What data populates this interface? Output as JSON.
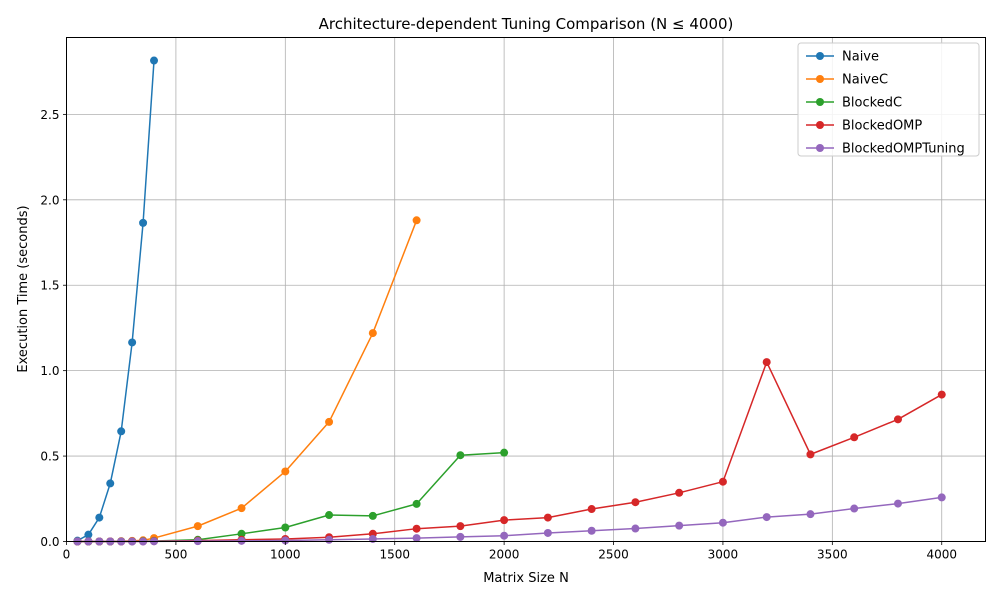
{
  "chart_data": {
    "type": "line",
    "title": "Architecture-dependent Tuning Comparison (N ≤ 4000)",
    "xlabel": "Matrix Size N",
    "ylabel": "Execution Time (seconds)",
    "xlim": [
      0,
      4200
    ],
    "ylim": [
      0,
      2.95
    ],
    "xticks": [
      0,
      500,
      1000,
      1500,
      2000,
      2500,
      3000,
      3500,
      4000
    ],
    "yticks": [
      0.0,
      0.5,
      1.0,
      1.5,
      2.0,
      2.5
    ],
    "xtick_labels": [
      "0",
      "500",
      "1000",
      "1500",
      "2000",
      "2500",
      "3000",
      "3500",
      "4000"
    ],
    "ytick_labels": [
      "0.0",
      "0.5",
      "1.0",
      "1.5",
      "2.0",
      "2.5"
    ],
    "grid": true,
    "legend_position": "top-right",
    "series": [
      {
        "name": "Naive",
        "color": "#1f77b4",
        "x": [
          50,
          100,
          150,
          200,
          250,
          300,
          350,
          400
        ],
        "y": [
          0.005,
          0.04,
          0.14,
          0.34,
          0.645,
          1.165,
          1.865,
          2.815
        ]
      },
      {
        "name": "NaiveC",
        "color": "#ff7f0e",
        "x": [
          50,
          100,
          150,
          200,
          250,
          300,
          350,
          400,
          600,
          800,
          1000,
          1200,
          1400,
          1600
        ],
        "y": [
          0.0,
          0.0,
          0.0,
          0.001,
          0.002,
          0.004,
          0.007,
          0.02,
          0.09,
          0.195,
          0.41,
          0.7,
          1.22,
          1.88
        ]
      },
      {
        "name": "BlockedC",
        "color": "#2ca02c",
        "x": [
          50,
          100,
          150,
          200,
          250,
          300,
          350,
          400,
          600,
          800,
          1000,
          1200,
          1400,
          1600,
          1800,
          2000
        ],
        "y": [
          0.0,
          0.0,
          0.0,
          0.0,
          0.001,
          0.001,
          0.002,
          0.003,
          0.01,
          0.045,
          0.082,
          0.155,
          0.15,
          0.22,
          0.505,
          0.52
        ]
      },
      {
        "name": "BlockedOMP",
        "color": "#d62728",
        "x": [
          50,
          100,
          150,
          200,
          250,
          300,
          350,
          400,
          600,
          800,
          1000,
          1200,
          1400,
          1600,
          1800,
          2000,
          2200,
          2400,
          2600,
          2800,
          3000,
          3200,
          3400,
          3600,
          3800,
          4000
        ],
        "y": [
          0.0,
          0.0,
          0.0,
          0.0,
          0.0,
          0.001,
          0.001,
          0.002,
          0.005,
          0.01,
          0.015,
          0.025,
          0.045,
          0.075,
          0.09,
          0.125,
          0.14,
          0.19,
          0.23,
          0.285,
          0.35,
          1.05,
          0.51,
          0.61,
          0.715,
          0.86
        ]
      },
      {
        "name": "BlockedOMPTuning",
        "color": "#9467bd",
        "x": [
          50,
          100,
          150,
          200,
          250,
          300,
          350,
          400,
          600,
          800,
          1000,
          1200,
          1400,
          1600,
          1800,
          2000,
          2200,
          2400,
          2600,
          2800,
          3000,
          3200,
          3400,
          3600,
          3800,
          4000
        ],
        "y": [
          0.0,
          0.0,
          0.0,
          0.0,
          0.0,
          0.0,
          0.0,
          0.001,
          0.002,
          0.004,
          0.006,
          0.01,
          0.015,
          0.02,
          0.027,
          0.034,
          0.05,
          0.063,
          0.076,
          0.093,
          0.11,
          0.143,
          0.16,
          0.193,
          0.222,
          0.258
        ]
      }
    ]
  }
}
